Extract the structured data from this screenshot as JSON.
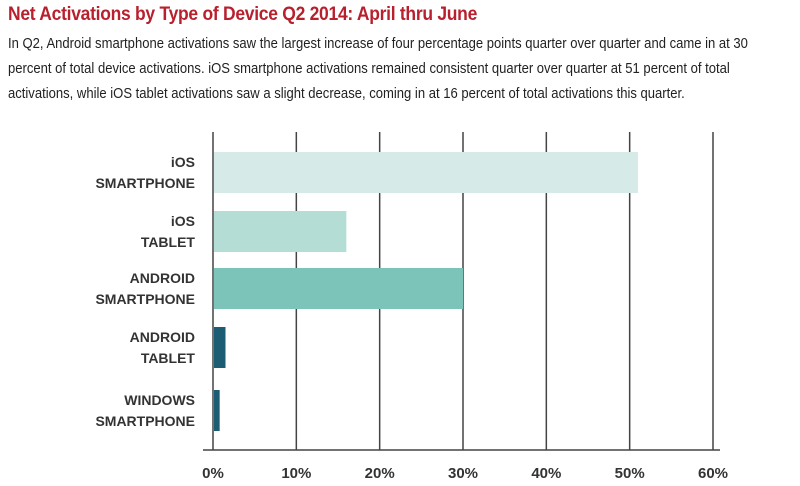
{
  "header": {
    "title": "Net Activations by Type of Device Q2 2014: April thru June",
    "description": "In Q2, Android smartphone activations saw the largest increase of four percentage points quarter over quarter and came in at 30 percent of total device activations. iOS smartphone activations remained consistent quarter over quarter at 51 percent of total activations, while iOS tablet activations saw a slight decrease, coming in at 16 percent of total activations this quarter."
  },
  "chart_data": {
    "type": "bar",
    "orientation": "horizontal",
    "title": "Net Activations by Type of Device Q2 2014: April thru June",
    "categories": [
      [
        "iOS",
        "SMARTPHONE"
      ],
      [
        "iOS",
        "TABLET"
      ],
      [
        "ANDROID",
        "SMARTPHONE"
      ],
      [
        "ANDROID",
        "TABLET"
      ],
      [
        "WINDOWS",
        "SMARTPHONE"
      ]
    ],
    "values": [
      51,
      16,
      30,
      1.5,
      0.8
    ],
    "colors": [
      "#d6ebe7",
      "#b4ddd6",
      "#7cc4b9",
      "#1c5d74",
      "#1c5d74"
    ],
    "xlim": [
      0,
      60
    ],
    "xticks": [
      0,
      10,
      20,
      30,
      40,
      50,
      60
    ],
    "xtick_labels": [
      "0%",
      "10%",
      "20%",
      "30%",
      "40%",
      "50%",
      "60%"
    ],
    "grid": true,
    "xlabel": "",
    "ylabel": ""
  }
}
